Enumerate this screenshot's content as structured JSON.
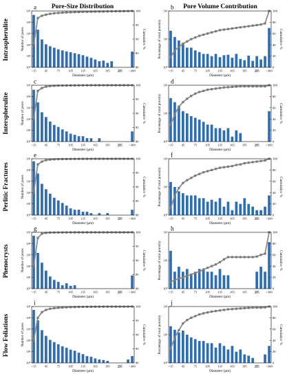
{
  "figure": {
    "column_titles": [
      "Pore-Size Distribution",
      "Pore Volume Contribution"
    ],
    "row_labels": [
      "Intraspherulite",
      "Interspherulite",
      "Perlitic Fractures",
      "Phenocrysts",
      "Flow Foliations"
    ],
    "colors": {
      "bar": "#2e6db4",
      "line": "#8c8c8c",
      "marker": "#7a7a7a",
      "axis": "#222222"
    }
  },
  "chart_data": [
    {
      "panel": "a",
      "type": "bar",
      "overlay": "line",
      "xlabel": "Diameter (μm)",
      "ylabel": "Number of pores",
      "y2label": "Cumulative %",
      "xticks": [
        "<15",
        "45",
        "75",
        "105",
        "135",
        "165",
        "195",
        "225",
        "255",
        ">300"
      ],
      "yscale": "log",
      "ylim": [
        1,
        100000
      ],
      "yticks": [
        "10⁰",
        "10¹",
        "10²",
        "10³",
        "10⁴",
        "10⁵"
      ],
      "y2lim": [
        80,
        100
      ],
      "y2ticks": [
        "80",
        "85",
        "90",
        "95",
        "100"
      ],
      "values": [
        45000,
        2200,
        300,
        110,
        75,
        55,
        40,
        32,
        26,
        22,
        18,
        15,
        12,
        9,
        7,
        5,
        3.5,
        4,
        2.5,
        3.5,
        0,
        0,
        0,
        0,
        25
      ],
      "cumulative": [
        88,
        97.5,
        98.3,
        98.7,
        99.0,
        99.2,
        99.3,
        99.4,
        99.5,
        99.55,
        99.6,
        99.65,
        99.7,
        99.72,
        99.75,
        99.78,
        99.8,
        99.82,
        99.85,
        99.87,
        99.9,
        99.92,
        99.94,
        99.96,
        100
      ]
    },
    {
      "panel": "b",
      "type": "bar",
      "overlay": "line",
      "xlabel": "Diameter (μm)",
      "ylabel": "Percentage of total porosity",
      "y2label": "Cumulative %",
      "xticks": [
        "<15",
        "45",
        "75",
        "105",
        "135",
        "165",
        "195",
        "225",
        "255",
        ">300"
      ],
      "yscale": "log",
      "ylim": [
        1,
        100
      ],
      "yticks": [
        "10⁰",
        "10¹",
        "10²"
      ],
      "y2lim": [
        0,
        100
      ],
      "y2ticks": [
        "0",
        "20",
        "40",
        "60",
        "80",
        "100"
      ],
      "values": [
        20,
        12,
        9,
        7,
        5,
        5,
        4,
        3.5,
        3,
        3,
        2.5,
        3,
        2.3,
        2.7,
        2.8,
        2.2,
        3,
        2,
        1.8,
        2.6,
        1.7,
        2.5,
        1.9,
        2.5,
        25
      ],
      "cumulative": [
        18,
        30,
        36,
        42,
        46,
        50,
        53,
        56,
        58,
        60,
        62,
        64,
        66,
        67,
        68,
        69,
        70,
        71,
        72,
        73,
        74,
        75,
        76,
        78,
        100
      ]
    },
    {
      "panel": "c",
      "type": "bar",
      "overlay": "line",
      "xlabel": "Diameter (μm)",
      "ylabel": "Number of pores",
      "y2label": "Cumulative %",
      "xticks": [
        "<15",
        "45",
        "75",
        "105",
        "135",
        "165",
        "195",
        "225",
        "255",
        ">300"
      ],
      "yscale": "log",
      "ylim": [
        1,
        100000
      ],
      "yticks": [
        "10⁰",
        "10¹",
        "10²",
        "10³",
        "10⁴",
        "10⁵"
      ],
      "y2lim": [
        80,
        100
      ],
      "y2ticks": [
        "80",
        "85",
        "90",
        "95",
        "100"
      ],
      "values": [
        40000,
        3000,
        400,
        150,
        60,
        30,
        20,
        12,
        8,
        5,
        4,
        3,
        3,
        2,
        2,
        0,
        2,
        0,
        0,
        0,
        0,
        0,
        0,
        0,
        8
      ],
      "cumulative": [
        88,
        98,
        99,
        99.5,
        99.7,
        99.8,
        99.85,
        99.88,
        99.9,
        99.92,
        99.94,
        99.95,
        99.96,
        99.97,
        99.98,
        99.98,
        99.99,
        99.99,
        99.99,
        99.99,
        99.99,
        99.99,
        99.99,
        99.99,
        100
      ]
    },
    {
      "panel": "d",
      "type": "bar",
      "overlay": "line",
      "xlabel": "Diameter (μm)",
      "ylabel": "Percentage of total porosity",
      "y2label": "Cumulative %",
      "xticks": [
        "<15",
        "45",
        "75",
        "105",
        "135",
        "165",
        "195",
        "225",
        "255",
        ">300"
      ],
      "yscale": "log",
      "ylim": [
        1,
        100
      ],
      "yticks": [
        "10⁰",
        "10¹",
        "10²"
      ],
      "y2lim": [
        0,
        100
      ],
      "y2ticks": [
        "0",
        "20",
        "40",
        "60",
        "80",
        "100"
      ],
      "values": [
        35,
        25,
        18,
        12,
        10,
        8,
        7,
        6,
        5,
        4,
        4,
        3,
        3,
        2.5,
        3,
        1.5,
        2.5,
        2,
        0,
        0,
        0,
        0,
        0,
        0,
        12
      ],
      "cumulative": [
        30,
        48,
        62,
        70,
        76,
        81,
        85,
        88,
        90,
        92,
        93,
        94,
        95,
        96,
        96.5,
        97,
        97.5,
        98,
        98,
        98,
        98,
        98,
        98,
        98,
        100
      ]
    },
    {
      "panel": "e",
      "type": "bar",
      "overlay": "line",
      "xlabel": "Diameter (μm)",
      "ylabel": "Number of pores",
      "y2label": "Cumulative %",
      "xticks": [
        "<15",
        "45",
        "75",
        "105",
        "135",
        "165",
        "195",
        "225",
        "255",
        ">300"
      ],
      "yscale": "log",
      "ylim": [
        1,
        100000
      ],
      "yticks": [
        "10⁰",
        "10¹",
        "10²",
        "10³",
        "10⁴",
        "10⁵"
      ],
      "y2lim": [
        80,
        100
      ],
      "y2ticks": [
        "80",
        "85",
        "90",
        "95",
        "100"
      ],
      "values": [
        60000,
        5000,
        600,
        200,
        80,
        35,
        20,
        12,
        7,
        4,
        3,
        3,
        2,
        2,
        1.5,
        0,
        1.5,
        0,
        1.5,
        0,
        0,
        0,
        0,
        0,
        3
      ],
      "cumulative": [
        88,
        98,
        99,
        99.5,
        99.7,
        99.8,
        99.85,
        99.88,
        99.9,
        99.92,
        99.94,
        99.95,
        99.96,
        99.97,
        99.98,
        99.98,
        99.99,
        99.99,
        99.99,
        99.99,
        99.99,
        99.99,
        99.99,
        99.99,
        100
      ]
    },
    {
      "panel": "f",
      "type": "bar",
      "overlay": "line",
      "xlabel": "Diameter (μm)",
      "ylabel": "Percentage of total porosity",
      "y2label": "Cumulative %",
      "xticks": [
        "<15",
        "45",
        "75",
        "105",
        "135",
        "165",
        "195",
        "225",
        "255",
        ">300"
      ],
      "yscale": "log",
      "ylim": [
        1,
        100
      ],
      "yticks": [
        "10⁰",
        "10¹",
        "10²"
      ],
      "y2lim": [
        0,
        100
      ],
      "y2ticks": [
        "0",
        "20",
        "40",
        "60",
        "80",
        "100"
      ],
      "values": [
        15,
        10,
        7,
        6,
        5,
        5,
        5,
        4,
        4,
        3,
        3.5,
        3,
        4,
        2,
        3,
        1.5,
        3,
        2.5,
        4,
        2.5,
        2,
        1.5,
        1.5,
        2,
        5
      ],
      "cumulative": [
        12,
        35,
        48,
        57,
        62,
        66,
        70,
        73,
        76,
        78,
        80,
        82,
        84,
        85,
        86,
        87,
        89,
        90,
        92,
        93,
        94,
        95,
        96,
        97,
        100
      ]
    },
    {
      "panel": "g",
      "type": "bar",
      "overlay": "line",
      "xlabel": "Diameter (μm)",
      "ylabel": "Number of pores",
      "y2label": "Cumulative %",
      "xticks": [
        "<15",
        "45",
        "75",
        "105",
        "135",
        "165",
        "195",
        "225",
        "255",
        ">300"
      ],
      "yscale": "log",
      "ylim": [
        1,
        100000
      ],
      "yticks": [
        "10⁰",
        "10¹",
        "10²",
        "10³",
        "10⁴",
        "10⁵"
      ],
      "y2lim": [
        80,
        100
      ],
      "y2ticks": [
        "80",
        "85",
        "90",
        "95",
        "100"
      ],
      "values": [
        50000,
        1500,
        200,
        40,
        12,
        6,
        4,
        2,
        3,
        1.8,
        2,
        0,
        0,
        0,
        0,
        0,
        0,
        0,
        0,
        0,
        0,
        0,
        0,
        0,
        15
      ],
      "cumulative": [
        88,
        98,
        99.5,
        99.8,
        99.9,
        99.92,
        99.94,
        99.95,
        99.96,
        99.97,
        99.98,
        99.98,
        99.98,
        99.98,
        99.98,
        99.98,
        99.98,
        99.98,
        99.98,
        99.98,
        99.98,
        99.98,
        99.98,
        99.98,
        100
      ]
    },
    {
      "panel": "h",
      "type": "bar",
      "overlay": "line",
      "xlabel": "Diameter (μm)",
      "ylabel": "Percentage of total porosity",
      "y2label": "Cumulative %",
      "xticks": [
        "<15",
        "45",
        "75",
        "105",
        "135",
        "165",
        "195",
        "225",
        "255",
        ">300"
      ],
      "yscale": "log",
      "ylim": [
        1,
        100
      ],
      "yticks": [
        "10⁰",
        "10¹",
        "10²"
      ],
      "y2lim": [
        0,
        100
      ],
      "y2ticks": [
        "0",
        "20",
        "40",
        "60",
        "80",
        "100"
      ],
      "values": [
        22,
        4,
        6,
        4,
        5,
        3,
        4,
        5,
        5,
        4,
        4,
        3,
        5,
        3,
        3,
        0,
        0,
        0,
        0,
        0,
        0,
        4,
        6,
        4,
        45
      ],
      "cumulative": [
        12,
        15,
        18,
        20,
        23,
        25,
        28,
        30,
        34,
        37,
        40,
        43,
        47,
        52,
        56,
        56,
        56,
        56,
        56,
        56,
        56,
        57,
        60,
        62,
        100
      ]
    },
    {
      "panel": "i",
      "type": "bar",
      "overlay": "line",
      "xlabel": "Diameter (μm)",
      "ylabel": "Number of pores",
      "y2label": "Cumulative %",
      "xticks": [
        "<15",
        "45",
        "75",
        "105",
        "135",
        "165",
        "195",
        "225",
        "255",
        ">300"
      ],
      "yscale": "log",
      "ylim": [
        1,
        100000
      ],
      "yticks": [
        "10⁰",
        "10¹",
        "10²",
        "10³",
        "10⁴",
        "10⁵"
      ],
      "y2lim": [
        80,
        100
      ],
      "y2ticks": [
        "80",
        "85",
        "90",
        "95",
        "100"
      ],
      "values": [
        50000,
        6000,
        800,
        250,
        110,
        70,
        45,
        30,
        22,
        15,
        12,
        8,
        6,
        4,
        3.5,
        2.5,
        2,
        1.8,
        1.5,
        0,
        0,
        0,
        0,
        2,
        4
      ],
      "cumulative": [
        88,
        96,
        98,
        98.8,
        99.2,
        99.4,
        99.55,
        99.65,
        99.72,
        99.78,
        99.82,
        99.86,
        99.88,
        99.9,
        99.92,
        99.93,
        99.94,
        99.95,
        99.96,
        99.96,
        99.96,
        99.96,
        99.96,
        99.98,
        100
      ]
    },
    {
      "panel": "j",
      "type": "bar",
      "overlay": "line",
      "xlabel": "Diameter (μm)",
      "ylabel": "Percentage of total porosity",
      "y2label": "Cumulative %",
      "xticks": [
        "<15",
        "45",
        "75",
        "105",
        "135",
        "165",
        "195",
        "225",
        "255",
        ">300"
      ],
      "yscale": "log",
      "ylim": [
        1,
        100
      ],
      "yticks": [
        "10⁰",
        "10¹",
        "10²"
      ],
      "y2lim": [
        0,
        100
      ],
      "y2ticks": [
        "0",
        "20",
        "40",
        "60",
        "80",
        "100"
      ],
      "values": [
        20,
        15,
        12,
        14,
        10,
        8,
        7,
        6,
        6,
        5,
        5,
        3.5,
        5,
        4,
        3,
        4,
        2.5,
        3,
        2,
        1.8,
        1.5,
        0,
        0,
        2,
        4
      ],
      "cumulative": [
        25,
        45,
        58,
        70,
        76,
        80,
        83,
        86,
        88,
        89.5,
        91,
        92,
        93,
        94,
        95,
        95.5,
        96,
        96.5,
        97,
        97.5,
        98,
        98,
        98,
        98.5,
        100
      ]
    }
  ]
}
